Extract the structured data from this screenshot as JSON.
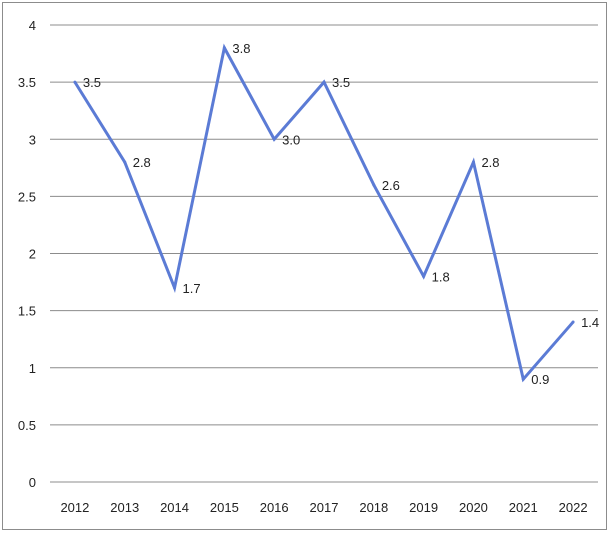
{
  "chart_data": {
    "type": "line",
    "title": "",
    "xlabel": "",
    "ylabel": "",
    "categories": [
      "2012",
      "2013",
      "2014",
      "2015",
      "2016",
      "2017",
      "2018",
      "2019",
      "2020",
      "2021",
      "2022"
    ],
    "series": [
      {
        "values": [
          3.5,
          2.8,
          1.7,
          3.8,
          3.0,
          3.5,
          2.6,
          1.8,
          2.8,
          0.9,
          1.4
        ],
        "labels": [
          "3.5",
          "2.8",
          "1.7",
          "3.8",
          "3.0",
          "3.5",
          "2.6",
          "1.8",
          "2.8",
          "0.9",
          "1.4"
        ],
        "color": "#5b7bd5"
      }
    ],
    "ylim": [
      0,
      4
    ],
    "yticks": [
      "0",
      "0.5",
      "1",
      "1.5",
      "2",
      "2.5",
      "3",
      "3.5",
      "4"
    ],
    "grid": true,
    "legend": "none"
  }
}
